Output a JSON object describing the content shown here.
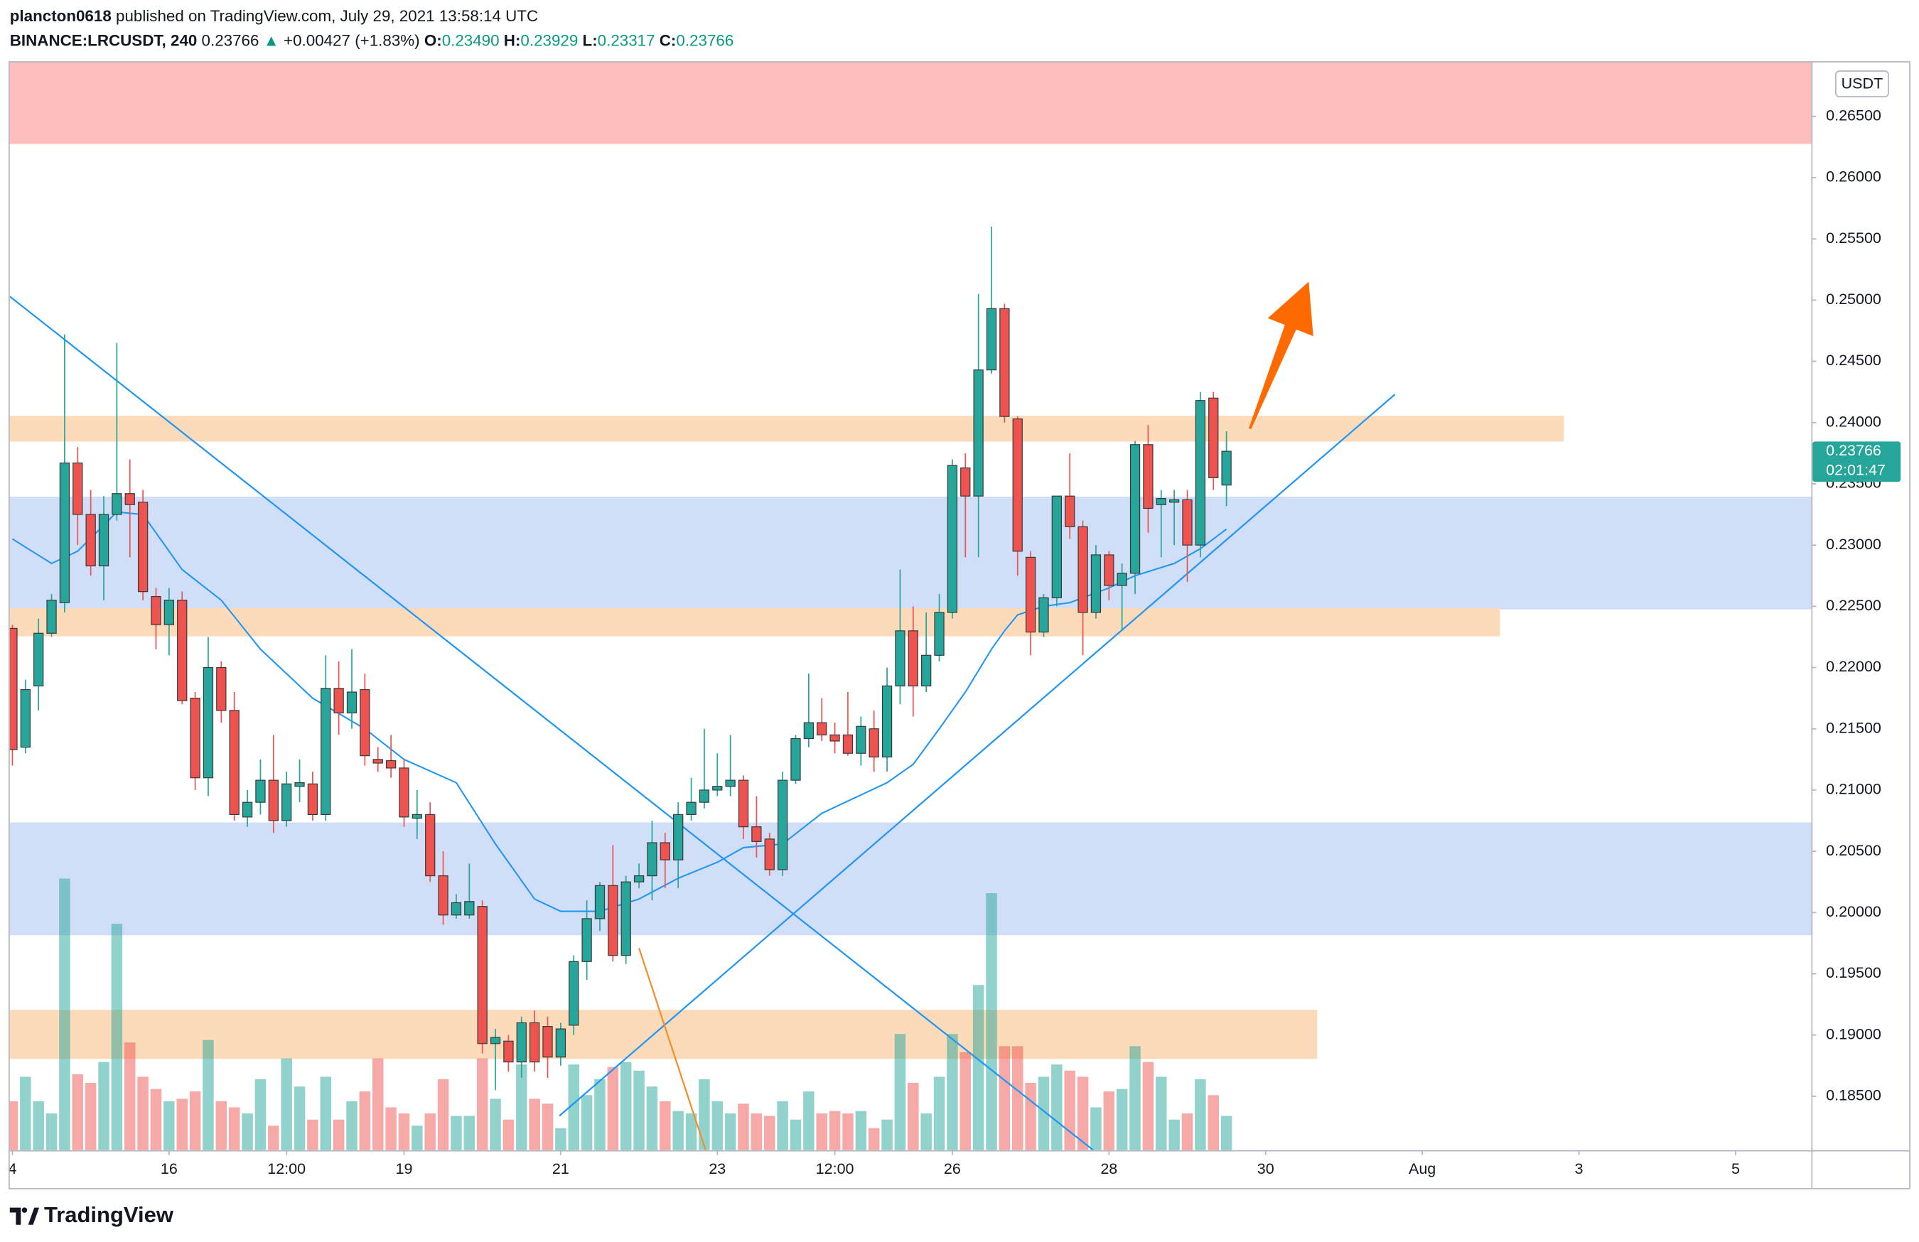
{
  "header": {
    "author": "plancton0618",
    "published": "published on TradingView.com, July 29, 2021 13:58:14 UTC",
    "symbol": "BINANCE:LRCUSDT, 240",
    "last": "0.23766",
    "change_arrow": "▲",
    "change": "+0.00427 (+1.83%)",
    "o_label": "O:",
    "o": "0.23490",
    "h_label": "H:",
    "h": "0.23929",
    "l_label": "L:",
    "l": "0.23317",
    "c_label": "C:",
    "c": "0.23766"
  },
  "chart_data": {
    "type": "candlestick",
    "x": [
      0,
      1,
      2,
      3,
      4,
      5,
      6,
      7,
      8,
      9,
      10,
      11,
      12,
      13,
      14,
      15,
      16,
      17,
      18,
      19,
      20,
      21,
      22,
      23,
      24,
      25,
      26,
      27,
      28,
      29,
      30,
      31,
      32,
      33,
      34,
      35,
      36,
      37,
      38,
      39,
      40,
      41,
      42,
      43,
      44,
      45,
      46,
      47,
      48,
      49,
      50,
      51,
      52,
      53,
      54,
      55,
      56,
      57,
      58,
      59,
      60,
      61,
      62,
      63,
      64,
      65,
      66,
      67,
      68,
      69,
      70,
      71,
      72,
      73,
      74,
      75,
      76,
      77,
      78,
      79,
      80,
      81,
      82,
      83,
      84,
      85,
      86,
      87,
      88,
      89,
      90,
      91,
      92,
      93
    ],
    "open": [
      0.2232,
      0.2135,
      0.2185,
      0.2228,
      0.2253,
      0.2367,
      0.2325,
      0.2283,
      0.2325,
      0.2342,
      0.2335,
      0.2258,
      0.2235,
      0.2255,
      0.2175,
      0.211,
      0.22,
      0.2165,
      0.2078,
      0.209,
      0.2108,
      0.2075,
      0.2103,
      0.2105,
      0.208,
      0.2183,
      0.2163,
      0.2182,
      0.2125,
      0.2124,
      0.2118,
      0.2077,
      0.208,
      0.203,
      0.1998,
      0.1998,
      0.2005,
      0.1893,
      0.1895,
      0.1878,
      0.191,
      0.1907,
      0.1882,
      0.1908,
      0.196,
      0.1995,
      0.2022,
      0.1965,
      0.2025,
      0.203,
      0.2057,
      0.2043,
      0.208,
      0.209,
      0.21,
      0.2103,
      0.2108,
      0.207,
      0.206,
      0.2035,
      0.2108,
      0.2142,
      0.2155,
      0.2145,
      0.2145,
      0.213,
      0.215,
      0.2127,
      0.2185,
      0.223,
      0.2185,
      0.221,
      0.2245,
      0.2363,
      0.234,
      0.2443,
      0.2493,
      0.2403,
      0.229,
      0.2229,
      0.2257,
      0.234,
      0.2315,
      0.2245,
      0.2292,
      0.2267,
      0.2277,
      0.2382,
      0.2333,
      0.2335,
      0.2337,
      0.23,
      0.242,
      0.2349
    ],
    "high": [
      0.2235,
      0.219,
      0.224,
      0.226,
      0.2472,
      0.238,
      0.2345,
      0.234,
      0.2465,
      0.237,
      0.2345,
      0.2265,
      0.2265,
      0.2262,
      0.218,
      0.2225,
      0.2205,
      0.218,
      0.21,
      0.2125,
      0.2145,
      0.2115,
      0.2125,
      0.2115,
      0.221,
      0.2205,
      0.2215,
      0.2195,
      0.2135,
      0.2145,
      0.2125,
      0.21,
      0.209,
      0.205,
      0.2015,
      0.204,
      0.201,
      0.1905,
      0.19,
      0.1915,
      0.192,
      0.1915,
      0.191,
      0.1965,
      0.201,
      0.2025,
      0.2055,
      0.203,
      0.204,
      0.2075,
      0.2065,
      0.209,
      0.211,
      0.215,
      0.213,
      0.2145,
      0.2112,
      0.2095,
      0.2065,
      0.2115,
      0.2145,
      0.2195,
      0.2175,
      0.2155,
      0.218,
      0.216,
      0.2165,
      0.22,
      0.228,
      0.225,
      0.2245,
      0.226,
      0.237,
      0.2375,
      0.2505,
      0.256,
      0.2497,
      0.2405,
      0.2295,
      0.226,
      0.234,
      0.2375,
      0.232,
      0.23,
      0.2295,
      0.2285,
      0.2385,
      0.2398,
      0.2345,
      0.2345,
      0.2345,
      0.2425,
      0.2425,
      0.23929
    ],
    "low": [
      0.212,
      0.213,
      0.2165,
      0.2225,
      0.2245,
      0.23,
      0.2275,
      0.2255,
      0.232,
      0.229,
      0.2255,
      0.2215,
      0.221,
      0.217,
      0.21,
      0.2095,
      0.2155,
      0.2075,
      0.207,
      0.208,
      0.2065,
      0.207,
      0.209,
      0.2075,
      0.2075,
      0.2145,
      0.215,
      0.212,
      0.2115,
      0.211,
      0.207,
      0.206,
      0.2025,
      0.199,
      0.1995,
      0.1995,
      0.1885,
      0.1855,
      0.187,
      0.1865,
      0.187,
      0.1865,
      0.1875,
      0.19,
      0.1945,
      0.1985,
      0.196,
      0.1958,
      0.202,
      0.201,
      0.202,
      0.202,
      0.2075,
      0.2085,
      0.2095,
      0.2095,
      0.206,
      0.2045,
      0.203,
      0.203,
      0.2105,
      0.2135,
      0.214,
      0.213,
      0.2128,
      0.212,
      0.2115,
      0.2115,
      0.217,
      0.216,
      0.218,
      0.2205,
      0.224,
      0.229,
      0.229,
      0.244,
      0.24,
      0.2275,
      0.221,
      0.2225,
      0.225,
      0.2305,
      0.221,
      0.224,
      0.2255,
      0.223,
      0.226,
      0.231,
      0.229,
      0.23,
      0.227,
      0.229,
      0.2345,
      0.23317
    ],
    "close": [
      0.2133,
      0.2182,
      0.2228,
      0.2255,
      0.2367,
      0.2325,
      0.2283,
      0.2325,
      0.2342,
      0.2333,
      0.2262,
      0.2235,
      0.2255,
      0.2173,
      0.211,
      0.22,
      0.2165,
      0.208,
      0.209,
      0.2108,
      0.2075,
      0.2105,
      0.2106,
      0.208,
      0.2183,
      0.2163,
      0.218,
      0.2128,
      0.2122,
      0.2118,
      0.2078,
      0.208,
      0.203,
      0.1998,
      0.2008,
      0.2009,
      0.1893,
      0.1898,
      0.1878,
      0.191,
      0.1878,
      0.1882,
      0.1905,
      0.196,
      0.1995,
      0.2022,
      0.1965,
      0.2025,
      0.203,
      0.2057,
      0.2043,
      0.208,
      0.209,
      0.21,
      0.2103,
      0.2108,
      0.207,
      0.2058,
      0.2035,
      0.2108,
      0.2142,
      0.2155,
      0.2145,
      0.214,
      0.213,
      0.2152,
      0.2127,
      0.2185,
      0.223,
      0.2185,
      0.221,
      0.2245,
      0.2365,
      0.234,
      0.2443,
      0.2493,
      0.2405,
      0.2295,
      0.2229,
      0.2257,
      0.234,
      0.2315,
      0.2245,
      0.2292,
      0.2267,
      0.2277,
      0.2382,
      0.233,
      0.2338,
      0.2337,
      0.23,
      0.2418,
      0.2355,
      0.23766
    ],
    "volume": [
      40,
      60,
      40,
      30,
      222,
      62,
      55,
      72,
      185,
      88,
      60,
      50,
      40,
      42,
      48,
      90,
      40,
      35,
      30,
      58,
      20,
      75,
      52,
      25,
      60,
      25,
      40,
      48,
      75,
      35,
      30,
      20,
      30,
      58,
      28,
      28,
      75,
      42,
      25,
      70,
      42,
      38,
      18,
      70,
      45,
      58,
      68,
      72,
      65,
      52,
      40,
      32,
      30,
      58,
      40,
      30,
      38,
      30,
      28,
      40,
      25,
      48,
      30,
      32,
      30,
      32,
      18,
      25,
      95,
      55,
      30,
      60,
      95,
      80,
      135,
      210,
      85,
      85,
      55,
      60,
      70,
      65,
      60,
      35,
      48,
      50,
      85,
      72,
      60,
      25,
      30,
      58,
      45,
      28
    ],
    "up_color": "#26a69a",
    "down_color": "#ef5350",
    "xlim": [
      -0.2,
      137.8
    ],
    "xticks": [
      {
        "value": 0,
        "label": "4"
      },
      {
        "value": 12,
        "label": "16"
      },
      {
        "value": 21,
        "label": "12:00"
      },
      {
        "value": 30,
        "label": "19"
      },
      {
        "value": 42,
        "label": "21"
      },
      {
        "value": 54,
        "label": "23"
      },
      {
        "value": 63,
        "label": "12:00"
      },
      {
        "value": 72,
        "label": "26"
      },
      {
        "value": 84,
        "label": "28"
      },
      {
        "value": 96,
        "label": "30"
      },
      {
        "value": 108,
        "label": "Aug"
      },
      {
        "value": 120,
        "label": "3"
      },
      {
        "value": 132,
        "label": "5"
      }
    ],
    "ylim": [
      0.1806,
      0.2695
    ],
    "yticks": [
      {
        "value": 0.185,
        "label": "0.18500"
      },
      {
        "value": 0.19,
        "label": "0.19000"
      },
      {
        "value": 0.195,
        "label": "0.19500"
      },
      {
        "value": 0.2,
        "label": "0.20000"
      },
      {
        "value": 0.205,
        "label": "0.20500"
      },
      {
        "value": 0.21,
        "label": "0.21000"
      },
      {
        "value": 0.215,
        "label": "0.21500"
      },
      {
        "value": 0.22,
        "label": "0.22000"
      },
      {
        "value": 0.225,
        "label": "0.22500"
      },
      {
        "value": 0.23,
        "label": "0.23000"
      },
      {
        "value": 0.235,
        "label": "0.23500"
      },
      {
        "value": 0.24,
        "label": "0.24000"
      },
      {
        "value": 0.245,
        "label": "0.24500"
      },
      {
        "value": 0.25,
        "label": "0.25000"
      },
      {
        "value": 0.255,
        "label": "0.25500"
      },
      {
        "value": 0.26,
        "label": "0.26000"
      },
      {
        "value": 0.265,
        "label": "0.26500"
      }
    ],
    "y_unit": "USDT",
    "last_price": {
      "value": 0.23766,
      "label": "0.23766"
    },
    "countdown": "02:01:47",
    "ma": {
      "color": "#2196f3",
      "x": [
        0,
        3,
        5,
        8,
        10,
        13,
        16,
        19,
        23,
        27,
        30,
        34,
        37,
        40,
        42,
        45,
        48,
        51,
        54,
        56,
        59,
        62,
        65,
        67,
        69,
        71,
        73,
        75,
        76,
        77,
        79,
        81,
        84,
        86,
        89,
        91,
        93
      ],
      "values": [
        0.2305,
        0.2285,
        0.2295,
        0.2327,
        0.2325,
        0.228,
        0.2255,
        0.2215,
        0.2175,
        0.215,
        0.2125,
        0.2106,
        0.2056,
        0.2011,
        0.2001,
        0.2001,
        0.2011,
        0.2028,
        0.2041,
        0.2053,
        0.2056,
        0.2081,
        0.2096,
        0.2106,
        0.2121,
        0.215,
        0.218,
        0.2215,
        0.223,
        0.2243,
        0.225,
        0.2253,
        0.2265,
        0.2275,
        0.2285,
        0.2297,
        0.2313
      ]
    },
    "zones": [
      {
        "color": "#ffbaba",
        "x": [
          -0.2,
          137.8
        ],
        "y": [
          0.2628,
          0.2695
        ]
      },
      {
        "color": "#fcd9b7",
        "x": [
          -0.2,
          118.8
        ],
        "y": [
          0.2385,
          0.2405
        ]
      },
      {
        "color": "#cfdcf8",
        "x": [
          -0.2,
          137.8
        ],
        "y": [
          0.2248,
          0.2339
        ]
      },
      {
        "color": "#fcd9b7",
        "x": [
          -0.2,
          113.9
        ],
        "y": [
          0.2226,
          0.2248
        ]
      },
      {
        "color": "#cfdcf8",
        "x": [
          -0.2,
          137.8
        ],
        "y": [
          0.1982,
          0.2073
        ]
      },
      {
        "color": "#fcd9b7",
        "x": [
          -0.2,
          99.9
        ],
        "y": [
          0.1881,
          0.192
        ]
      }
    ],
    "lines": [
      {
        "color": "#2196f3",
        "x": [
          -0.2,
          82.8
        ],
        "y": [
          0.2503,
          0.1806
        ]
      },
      {
        "color": "#2196f3",
        "x": [
          41.9,
          105.9
        ],
        "y": [
          0.1834,
          0.2423
        ]
      },
      {
        "color": "#f0902b",
        "x": [
          48,
          53.1
        ],
        "y": [
          0.1971,
          0.1806
        ]
      }
    ],
    "arrow": {
      "color": "#ff6a00",
      "x": [
        94.8,
        99.3
      ],
      "y": [
        0.2395,
        0.2515
      ]
    }
  },
  "footer": {
    "brand": "TradingView"
  }
}
